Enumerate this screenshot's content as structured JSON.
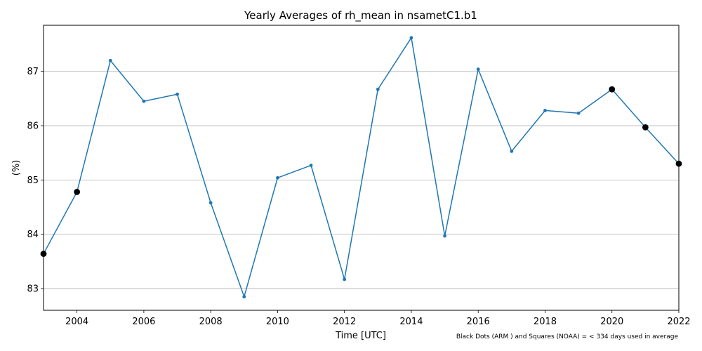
{
  "chart_data": {
    "type": "line",
    "title": "Yearly Averages of rh_mean in nsametC1.b1",
    "xlabel": "Time [UTC]",
    "ylabel": "(%)",
    "footnote": "Black Dots (ARM ) and Squares (NOAA) = < 334 days used in average",
    "xlim": [
      2003,
      2022
    ],
    "ylim": [
      82.6,
      87.85
    ],
    "xticks": [
      2004,
      2006,
      2008,
      2010,
      2012,
      2014,
      2016,
      2018,
      2020,
      2022
    ],
    "yticks": [
      83,
      84,
      85,
      86,
      87
    ],
    "grid": "horizontal",
    "series": [
      {
        "color": "#1f77b4",
        "x": [
          2003,
          2004,
          2005,
          2006,
          2007,
          2008,
          2009,
          2010,
          2011,
          2012,
          2013,
          2014,
          2015,
          2016,
          2017,
          2018,
          2019,
          2020,
          2021,
          2022
        ],
        "y": [
          83.64,
          84.78,
          87.2,
          86.45,
          86.58,
          84.58,
          82.85,
          85.04,
          85.27,
          83.17,
          86.67,
          87.62,
          83.97,
          87.04,
          85.53,
          86.28,
          86.23,
          86.67,
          85.97,
          85.3
        ]
      }
    ],
    "flagged_points": {
      "color": "#000000",
      "x": [
        2003,
        2004,
        2020,
        2021,
        2022
      ],
      "y": [
        83.64,
        84.78,
        86.67,
        85.97,
        85.3
      ]
    }
  }
}
